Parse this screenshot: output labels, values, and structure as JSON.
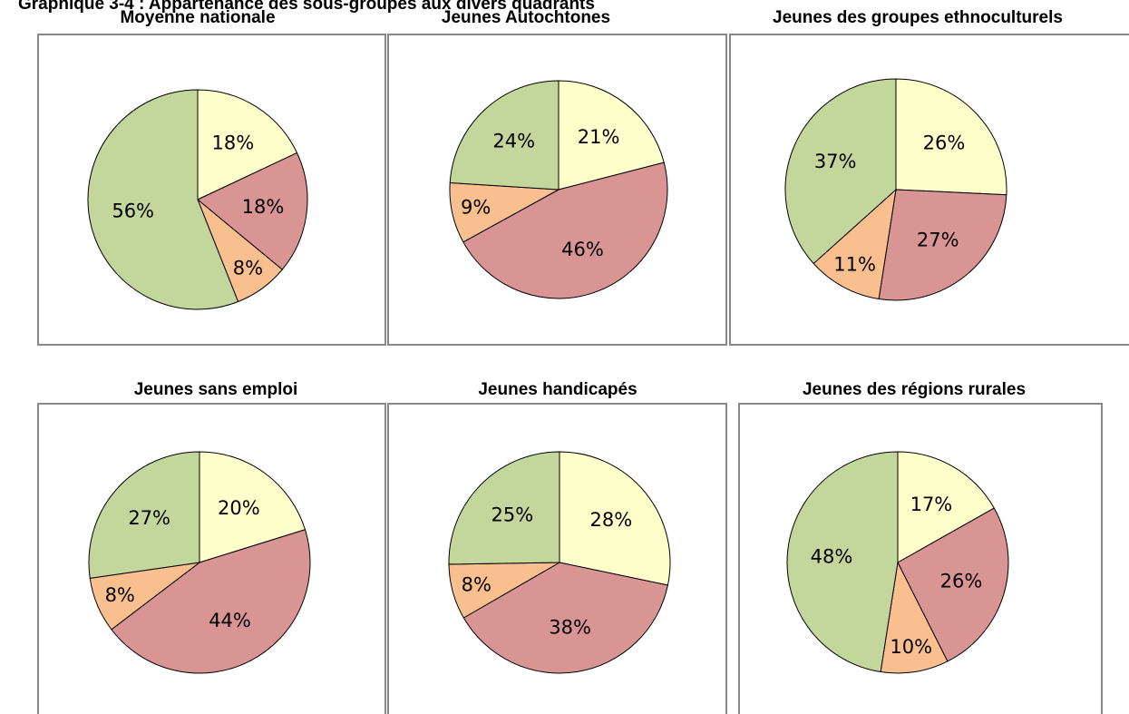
{
  "title": "Graphique 3-4 : Appartenance des sous-groupes aux divers quadrants",
  "chart_data": [
    {
      "type": "pie",
      "title": "Moyenne nationale",
      "values": [
        18,
        18,
        8,
        56
      ],
      "value_labels": [
        "18%",
        "18%",
        "8%",
        "56%"
      ],
      "colors": [
        "#ffffcc",
        "#d99594",
        "#fabf8f",
        "#c3d69b"
      ]
    },
    {
      "type": "pie",
      "title": "Jeunes Autochtones",
      "values": [
        21,
        46,
        9,
        24
      ],
      "value_labels": [
        "21%",
        "46%",
        "9%",
        "24%"
      ],
      "colors": [
        "#ffffcc",
        "#d99594",
        "#fabf8f",
        "#c3d69b"
      ]
    },
    {
      "type": "pie",
      "title": "Jeunes des groupes ethnoculturels",
      "values": [
        26,
        27,
        11,
        37
      ],
      "value_labels": [
        "26%",
        "27%",
        "11%",
        "37%"
      ],
      "colors": [
        "#ffffcc",
        "#d99594",
        "#fabf8f",
        "#c3d69b"
      ]
    },
    {
      "type": "pie",
      "title": "Jeunes sans emploi",
      "values": [
        20,
        44,
        8,
        27
      ],
      "value_labels": [
        "20%",
        "44%",
        "8%",
        "27%"
      ],
      "colors": [
        "#ffffcc",
        "#d99594",
        "#fabf8f",
        "#c3d69b"
      ]
    },
    {
      "type": "pie",
      "title": "Jeunes handicapés",
      "values": [
        28,
        38,
        8,
        25
      ],
      "value_labels": [
        "28%",
        "38%",
        "8%",
        "25%"
      ],
      "colors": [
        "#ffffcc",
        "#d99594",
        "#fabf8f",
        "#c3d69b"
      ]
    },
    {
      "type": "pie",
      "title": "Jeunes des régions rurales",
      "values": [
        17,
        26,
        10,
        48
      ],
      "value_labels": [
        "17%",
        "26%",
        "10%",
        "48%"
      ],
      "colors": [
        "#ffffcc",
        "#d99594",
        "#fabf8f",
        "#c3d69b"
      ]
    }
  ]
}
